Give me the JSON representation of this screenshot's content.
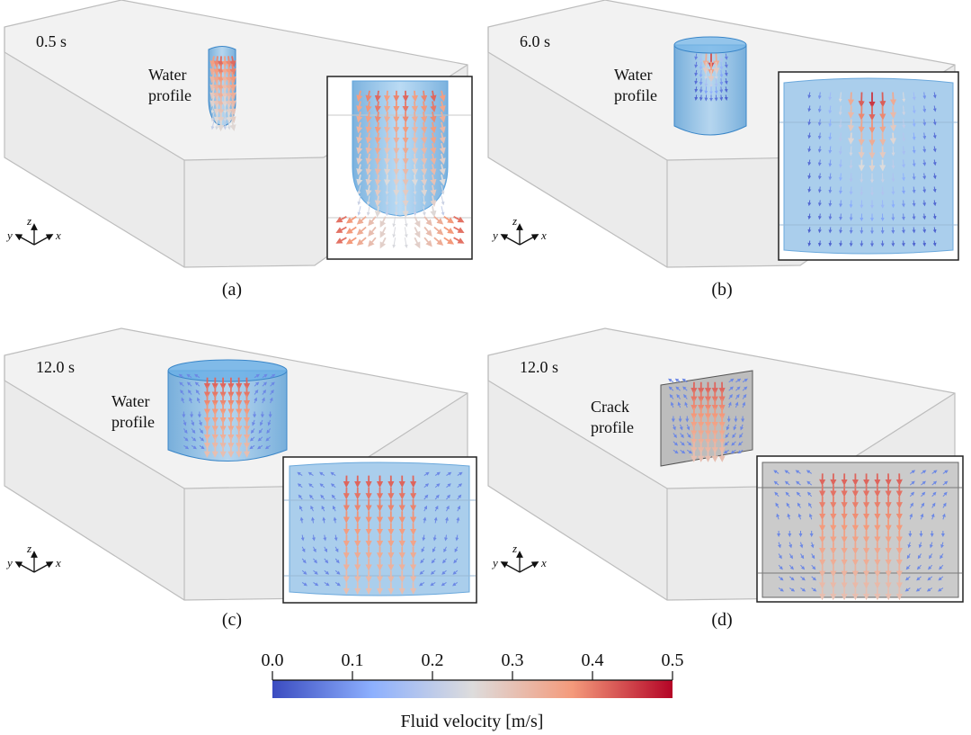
{
  "panels": [
    {
      "id": "a",
      "time": "0.5 s",
      "profile_line1": "Water",
      "profile_line2": "profile",
      "caption": "(a)"
    },
    {
      "id": "b",
      "time": "6.0 s",
      "profile_line1": "Water",
      "profile_line2": "profile",
      "caption": "(b)"
    },
    {
      "id": "c",
      "time": "12.0 s",
      "profile_line1": "Water",
      "profile_line2": "profile",
      "caption": "(c)"
    },
    {
      "id": "d",
      "time": "12.0 s",
      "profile_line1": "Crack",
      "profile_line2": "profile",
      "caption": "(d)"
    }
  ],
  "axes": {
    "x": "x",
    "y": "y",
    "z": "z"
  },
  "colorbar": {
    "title": "Fluid velocity [m/s]",
    "min": 0.0,
    "max": 0.5,
    "ticks": [
      "0.0",
      "0.1",
      "0.2",
      "0.3",
      "0.4",
      "0.5"
    ],
    "colors": {
      "low": "#3b4cc0",
      "mid": "#dddddd",
      "high": "#b40426"
    }
  },
  "colors": {
    "water": "#5aa6dc",
    "crack": "#9a9a9a",
    "box_edge": "#b8b8b8"
  }
}
